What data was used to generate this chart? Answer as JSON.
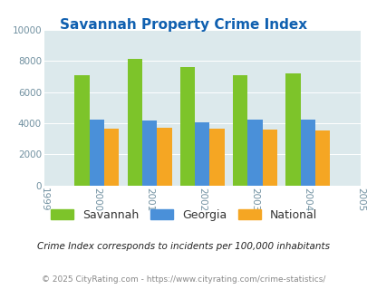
{
  "title": "Savannah Property Crime Index",
  "years": [
    2000,
    2001,
    2002,
    2003,
    2004
  ],
  "savannah": [
    7100,
    8150,
    7600,
    7100,
    7200
  ],
  "georgia": [
    4250,
    4150,
    4075,
    4250,
    4250
  ],
  "national": [
    3625,
    3700,
    3625,
    3600,
    3550
  ],
  "colors": {
    "savannah": "#7DC42A",
    "georgia": "#4A90D9",
    "national": "#F5A623"
  },
  "xlim": [
    1999,
    2005
  ],
  "ylim": [
    0,
    10000
  ],
  "yticks": [
    0,
    2000,
    4000,
    6000,
    8000,
    10000
  ],
  "xticks": [
    1999,
    2000,
    2001,
    2002,
    2003,
    2004,
    2005
  ],
  "background_color": "#DCE9EC",
  "title_color": "#1060B0",
  "tick_color": "#7090A0",
  "legend_labels": [
    "Savannah",
    "Georgia",
    "National"
  ],
  "legend_label_color": "#333333",
  "footnote1": "Crime Index corresponds to incidents per 100,000 inhabitants",
  "footnote2": "© 2025 CityRating.com - https://www.cityrating.com/crime-statistics/",
  "bar_width": 0.28
}
